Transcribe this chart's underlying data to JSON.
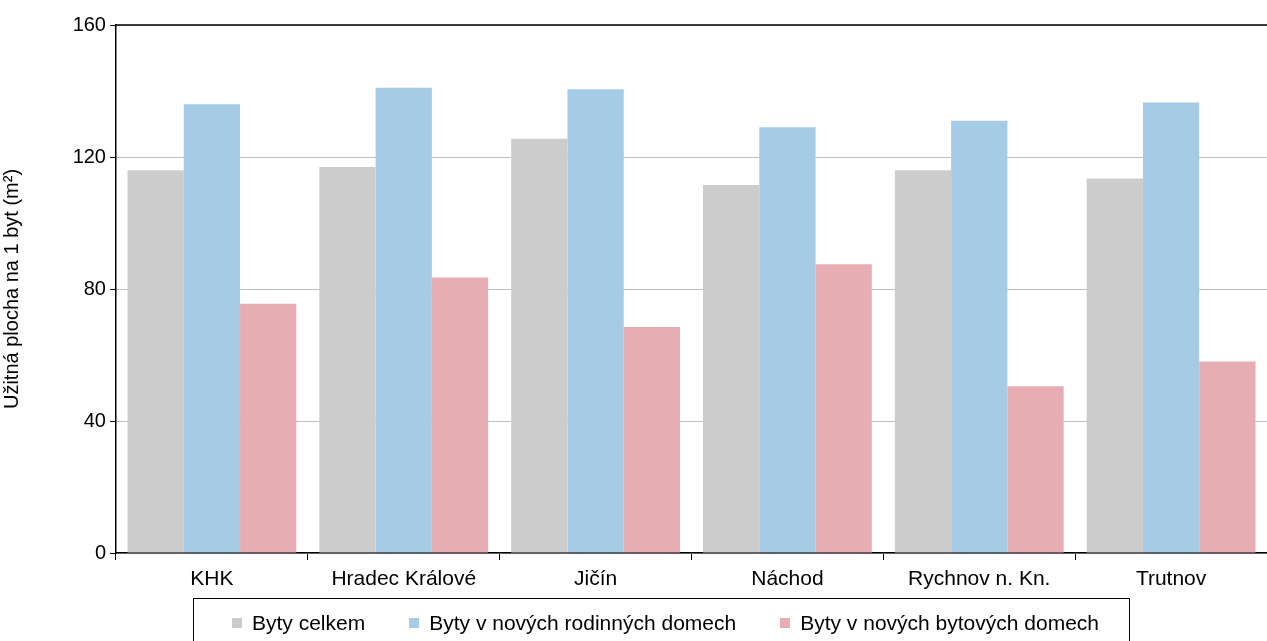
{
  "chart_data": {
    "type": "bar",
    "categories": [
      "KHK",
      "Hradec Králové",
      "Jičín",
      "Náchod",
      "Rychnov n. Kn.",
      "Trutnov"
    ],
    "ylabel": "Užitná plocha na 1 byt (m²)",
    "ylim": [
      0,
      160
    ],
    "yticks": [
      0,
      40,
      80,
      120,
      160
    ],
    "grid": "y",
    "legend": "bottom",
    "series": [
      {
        "name": "Byty celkem",
        "color": "#cccccc",
        "values": [
          116,
          117,
          125.5,
          111.5,
          116,
          113.5
        ]
      },
      {
        "name": "Byty v nových rodinných domech",
        "color": "#a6cbe6",
        "values": [
          136,
          141,
          140.5,
          129,
          131,
          136.5
        ]
      },
      {
        "name": "Byty v nových bytových domech",
        "color": "#e6aeb2",
        "values": [
          75.5,
          83.5,
          68.5,
          87.5,
          50.5,
          58
        ]
      }
    ]
  }
}
